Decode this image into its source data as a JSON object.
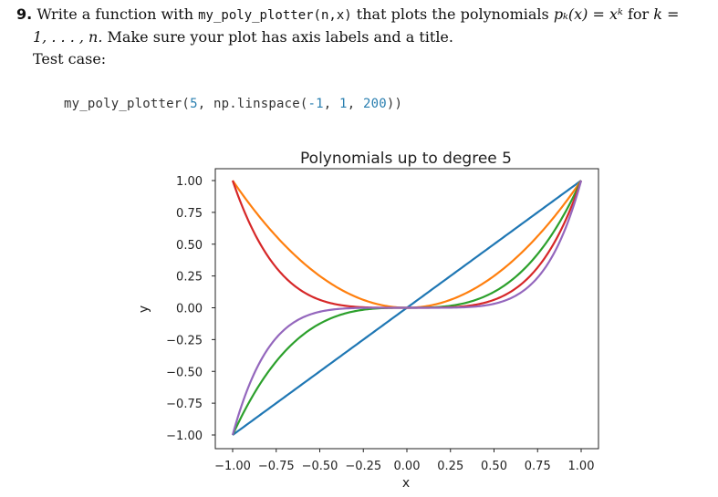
{
  "problem": {
    "number": "9.",
    "text_part1": "Write a function with",
    "function_signature": "my_poly_plotter(n,x)",
    "text_part2": "that plots the polynomials",
    "math_expr": "pₖ(x) = xᵏ",
    "text_part3": "for",
    "math_k_eq": "k =",
    "line2_math": "1, . . . , n.",
    "line2_text": "Make sure your plot has axis labels and a title.",
    "test_case_label": "Test case:"
  },
  "code": {
    "call_prefix": "my_poly_plotter(",
    "arg_n": "5",
    "mid": ", np.linspace(",
    "arg_start": "-1",
    "sep1": ", ",
    "arg_end": "1",
    "sep2": ", ",
    "arg_num": "200",
    "suffix": "))"
  },
  "chart_data": {
    "type": "line",
    "title": "Polynomials up to degree 5",
    "xlabel": "x",
    "ylabel": "y",
    "xlim": [
      -1,
      1
    ],
    "ylim": [
      -1,
      1
    ],
    "x_ticks": [
      -1.0,
      -0.75,
      -0.5,
      -0.25,
      0.0,
      0.25,
      0.5,
      0.75,
      1.0
    ],
    "x_tick_labels": [
      "−1.00",
      "−0.75",
      "−0.50",
      "−0.25",
      "0.00",
      "0.25",
      "0.50",
      "0.75",
      "1.00"
    ],
    "y_ticks": [
      1.0,
      0.75,
      0.5,
      0.25,
      0.0,
      -0.25,
      -0.5,
      -0.75,
      -1.0
    ],
    "y_tick_labels": [
      "1.00",
      "0.75",
      "0.50",
      "0.25",
      "0.00",
      "−0.25",
      "−0.50",
      "−0.75",
      "−1.00"
    ],
    "grid": false,
    "series": [
      {
        "degree": 1,
        "color": "#1f77b4"
      },
      {
        "degree": 2,
        "color": "#ff7f0e"
      },
      {
        "degree": 3,
        "color": "#2ca02c"
      },
      {
        "degree": 4,
        "color": "#d62728"
      },
      {
        "degree": 5,
        "color": "#9467bd"
      }
    ],
    "x_range": {
      "start": -1,
      "end": 1,
      "num_points": 200
    }
  }
}
